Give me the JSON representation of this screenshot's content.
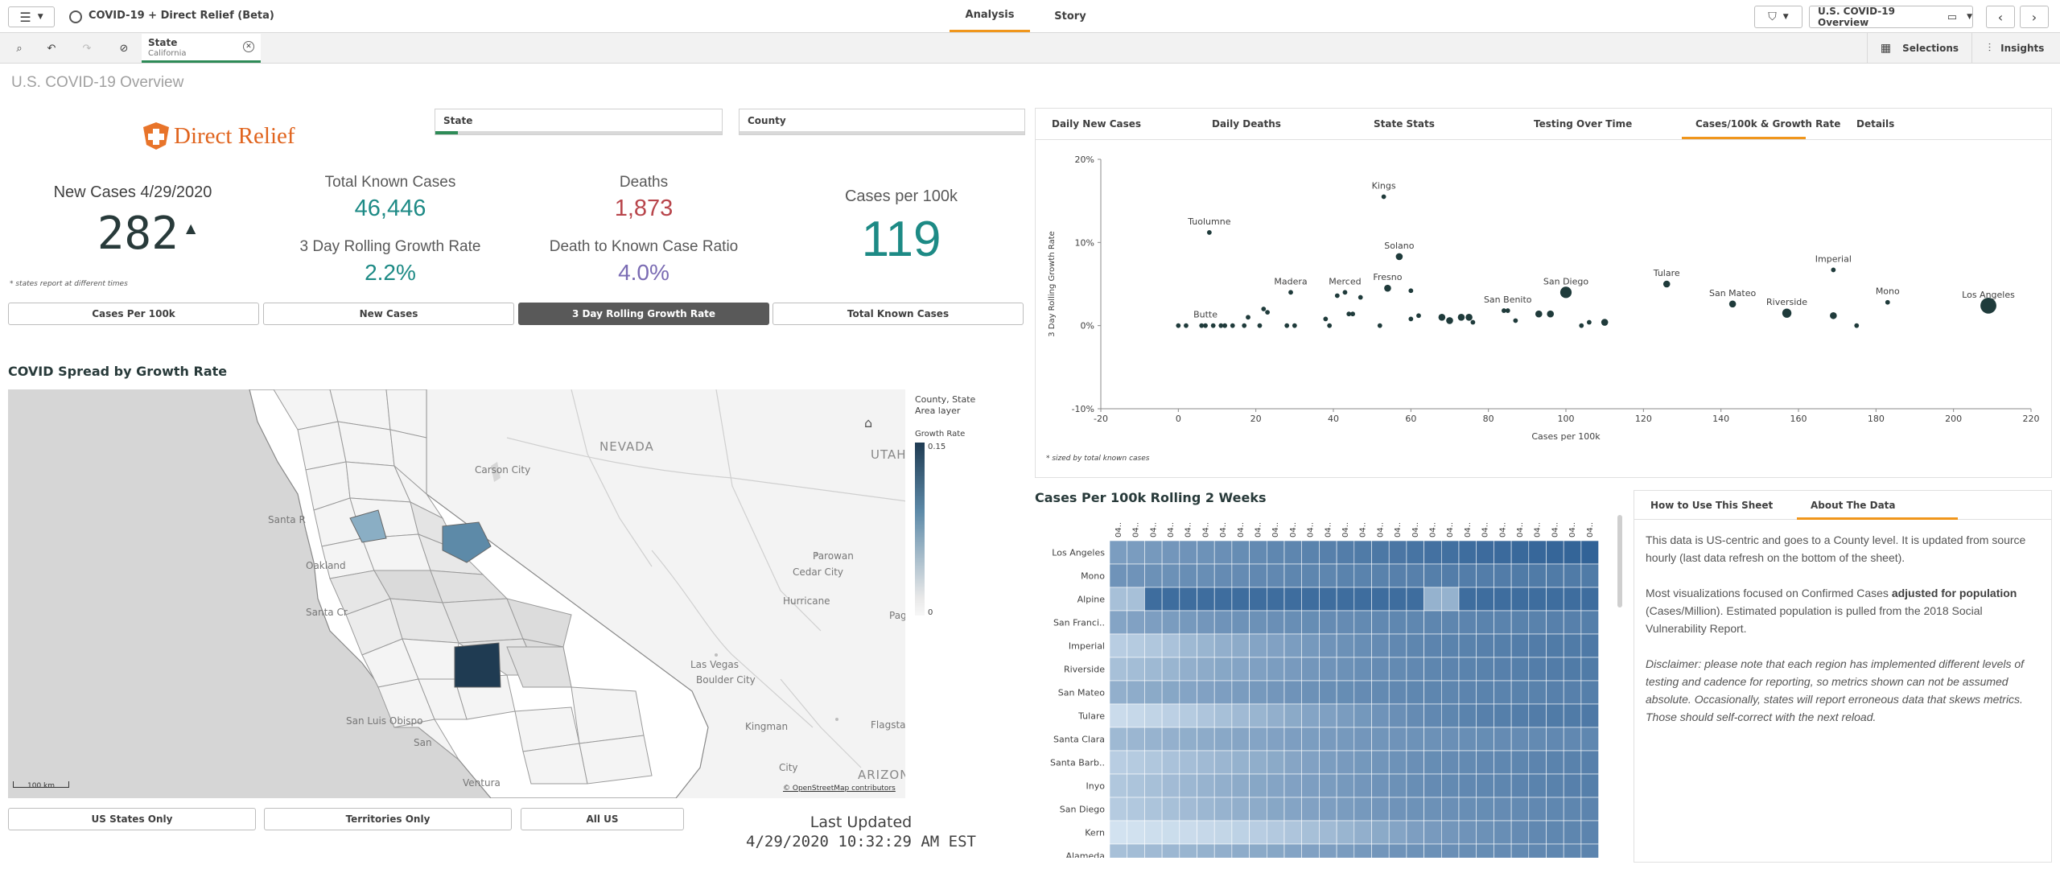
{
  "app": {
    "title": "COVID-19 + Direct Relief (Beta)",
    "tabs": [
      "Analysis",
      "Story"
    ],
    "active_tab": "Analysis",
    "sheet_selector": "U.S. COVID-19 Overview",
    "selections_label": "Selections",
    "insights_label": "Insights"
  },
  "selection": {
    "field": "State",
    "value": "California"
  },
  "page_title": "U.S. COVID-19 Overview",
  "logo_text": "Direct Relief",
  "filters": {
    "state_label": "State",
    "county_label": "County"
  },
  "kpis": {
    "new_cases_label": "New Cases 4/29/2020",
    "new_cases_value": "282",
    "new_cases_arrow": "▲",
    "total_known_label": "Total Known Cases",
    "total_known_value": "46,446",
    "growth_label": "3 Day Rolling Growth Rate",
    "growth_value": "2.2%",
    "deaths_label": "Deaths",
    "deaths_value": "1,873",
    "death_ratio_label": "Death to Known Case Ratio",
    "death_ratio_value": "4.0%",
    "cases_per_100k_label": "Cases per 100k",
    "cases_per_100k_value": "119",
    "footnote": "* states report at different times"
  },
  "metric_buttons": [
    "Cases Per 100k",
    "New Cases",
    "3 Day Rolling Growth Rate",
    "Total Known Cases"
  ],
  "metric_active": "3 Day Rolling Growth Rate",
  "map": {
    "title": "COVID Spread by Growth Rate",
    "legend_title_1": "County, State",
    "legend_title_2": "Area layer",
    "legend_measure": "Growth Rate",
    "legend_max": "0.15",
    "legend_min": "0",
    "labels": [
      "NEVADA",
      "UTAH",
      "Carson City",
      "Santa R",
      "Oakland",
      "Santa Cr",
      "San Luis Obispo",
      "San",
      "Ventura",
      "Parowan",
      "Cedar City",
      "Hurricane",
      "Pag",
      "Las Vegas",
      "Boulder City",
      "Kingman",
      "Flagsta",
      "City",
      "ARIZON"
    ],
    "scale_label": "100 km",
    "attribution": "© OpenStreetMap contributors",
    "colors": {
      "land": "#f4f4f4",
      "county_border": "#999999",
      "ocean": "#d6d6d6",
      "high": "#1f3b52",
      "mid": "#5d8aa8",
      "low": "#e3e3e3"
    }
  },
  "region_buttons": [
    "US States Only",
    "Territories Only",
    "All US"
  ],
  "last_updated": {
    "label": "Last Updated",
    "value": "4/29/2020 10:32:29 AM EST"
  },
  "chart_tabs": [
    "Daily New Cases",
    "Daily Deaths",
    "State Stats",
    "Testing Over Time",
    "Cases/100k & Growth Rate",
    "Details"
  ],
  "chart_tab_active": "Cases/100k & Growth Rate",
  "chart_data": [
    {
      "type": "scatter",
      "title": "",
      "xlabel": "Cases per 100k",
      "ylabel": "3 Day Rolling Growth Rate",
      "xlim": [
        -20,
        220
      ],
      "ylim": [
        -0.1,
        0.2
      ],
      "xticks": [
        "-20",
        "0",
        "20",
        "40",
        "60",
        "80",
        "100",
        "120",
        "140",
        "160",
        "180",
        "200",
        "220"
      ],
      "yticks": [
        "20%",
        "10%",
        "0%",
        "-10%"
      ],
      "footnote": "* sized by total known cases",
      "color": "#1f3b3b",
      "points": [
        {
          "label": "Tuolumne",
          "x": 8,
          "y": 0.112,
          "size": 1
        },
        {
          "label": "Kings",
          "x": 53,
          "y": 0.155,
          "size": 1
        },
        {
          "label": "Solano",
          "x": 57,
          "y": 0.083,
          "size": 2
        },
        {
          "label": "Madera",
          "x": 29,
          "y": 0.04,
          "size": 1
        },
        {
          "label": "Merced",
          "x": 43,
          "y": 0.04,
          "size": 1
        },
        {
          "label": "Fresno",
          "x": 54,
          "y": 0.045,
          "size": 2
        },
        {
          "label": "Butte",
          "x": 7,
          "y": 0.0,
          "size": 1
        },
        {
          "label": "San Benito",
          "x": 85,
          "y": 0.018,
          "size": 1
        },
        {
          "label": "San Diego",
          "x": 100,
          "y": 0.04,
          "size": 4
        },
        {
          "label": "Tulare",
          "x": 126,
          "y": 0.05,
          "size": 2
        },
        {
          "label": "San Mateo",
          "x": 143,
          "y": 0.026,
          "size": 2
        },
        {
          "label": "Riverside",
          "x": 157,
          "y": 0.015,
          "size": 3
        },
        {
          "label": "Imperial",
          "x": 169,
          "y": 0.067,
          "size": 1
        },
        {
          "label": "Mono",
          "x": 183,
          "y": 0.028,
          "size": 1
        },
        {
          "label": "Los Angeles",
          "x": 209,
          "y": 0.024,
          "size": 6
        },
        {
          "label": "",
          "x": 0,
          "y": 0.0,
          "size": 1
        },
        {
          "label": "",
          "x": 2,
          "y": 0.0,
          "size": 1
        },
        {
          "label": "",
          "x": 6,
          "y": 0.0,
          "size": 1
        },
        {
          "label": "",
          "x": 9,
          "y": 0.0,
          "size": 1
        },
        {
          "label": "",
          "x": 11,
          "y": 0.0,
          "size": 1
        },
        {
          "label": "",
          "x": 12,
          "y": 0.0,
          "size": 1
        },
        {
          "label": "",
          "x": 14,
          "y": 0.0,
          "size": 1
        },
        {
          "label": "",
          "x": 17,
          "y": 0.0,
          "size": 1
        },
        {
          "label": "",
          "x": 18,
          "y": 0.01,
          "size": 1
        },
        {
          "label": "",
          "x": 21,
          "y": 0.0,
          "size": 1
        },
        {
          "label": "",
          "x": 22,
          "y": 0.02,
          "size": 1
        },
        {
          "label": "",
          "x": 23,
          "y": 0.016,
          "size": 1
        },
        {
          "label": "",
          "x": 28,
          "y": 0.0,
          "size": 1
        },
        {
          "label": "",
          "x": 30,
          "y": 0.0,
          "size": 1
        },
        {
          "label": "",
          "x": 38,
          "y": 0.008,
          "size": 1
        },
        {
          "label": "",
          "x": 39,
          "y": 0.0,
          "size": 1
        },
        {
          "label": "",
          "x": 41,
          "y": 0.036,
          "size": 1
        },
        {
          "label": "",
          "x": 44,
          "y": 0.014,
          "size": 1
        },
        {
          "label": "",
          "x": 45,
          "y": 0.014,
          "size": 1
        },
        {
          "label": "",
          "x": 47,
          "y": 0.034,
          "size": 1
        },
        {
          "label": "",
          "x": 52,
          "y": 0.0,
          "size": 1
        },
        {
          "label": "",
          "x": 60,
          "y": 0.042,
          "size": 1
        },
        {
          "label": "",
          "x": 60,
          "y": 0.008,
          "size": 1
        },
        {
          "label": "",
          "x": 62,
          "y": 0.012,
          "size": 1
        },
        {
          "label": "",
          "x": 68,
          "y": 0.01,
          "size": 2
        },
        {
          "label": "",
          "x": 70,
          "y": 0.006,
          "size": 2
        },
        {
          "label": "",
          "x": 73,
          "y": 0.01,
          "size": 2
        },
        {
          "label": "",
          "x": 75,
          "y": 0.01,
          "size": 2
        },
        {
          "label": "",
          "x": 76,
          "y": 0.004,
          "size": 1
        },
        {
          "label": "",
          "x": 84,
          "y": 0.018,
          "size": 1
        },
        {
          "label": "",
          "x": 87,
          "y": 0.006,
          "size": 1
        },
        {
          "label": "",
          "x": 93,
          "y": 0.014,
          "size": 2
        },
        {
          "label": "",
          "x": 96,
          "y": 0.014,
          "size": 2
        },
        {
          "label": "",
          "x": 104,
          "y": 0.0,
          "size": 1
        },
        {
          "label": "",
          "x": 106,
          "y": 0.004,
          "size": 1
        },
        {
          "label": "",
          "x": 110,
          "y": 0.004,
          "size": 2
        },
        {
          "label": "",
          "x": 169,
          "y": 0.012,
          "size": 2
        },
        {
          "label": "",
          "x": 175,
          "y": 0.0,
          "size": 1
        }
      ]
    },
    {
      "type": "heatmap",
      "title": "Cases Per 100k Rolling 2 Weeks",
      "rows": [
        "Los Angeles",
        "Mono",
        "Alpine",
        "San Franci..",
        "Imperial",
        "Riverside",
        "San Mateo",
        "Tulare",
        "Santa Clara",
        "Santa Barb..",
        "Inyo",
        "San Diego",
        "Kern",
        "Alameda"
      ],
      "columns": [
        "04..",
        "04..",
        "04..",
        "04..",
        "04..",
        "04..",
        "04..",
        "04..",
        "04..",
        "04..",
        "04..",
        "04..",
        "04..",
        "04..",
        "04..",
        "04..",
        "04..",
        "04..",
        "04..",
        "04..",
        "04..",
        "04..",
        "04..",
        "04..",
        "04..",
        "04..",
        "04..",
        "04.."
      ],
      "color_low": "#dbe9f5",
      "color_high": "#2d5f94",
      "values": [
        [
          0.55,
          0.56,
          0.58,
          0.6,
          0.62,
          0.63,
          0.65,
          0.67,
          0.69,
          0.71,
          0.72,
          0.74,
          0.76,
          0.78,
          0.8,
          0.82,
          0.83,
          0.85,
          0.87,
          0.88,
          0.9,
          0.91,
          0.92,
          0.93,
          0.94,
          0.95,
          0.96,
          0.97
        ],
        [
          0.62,
          0.62,
          0.64,
          0.64,
          0.66,
          0.66,
          0.68,
          0.68,
          0.7,
          0.7,
          0.72,
          0.72,
          0.72,
          0.74,
          0.74,
          0.75,
          0.76,
          0.76,
          0.77,
          0.78,
          0.78,
          0.78,
          0.79,
          0.8,
          0.8,
          0.8,
          0.8,
          0.8
        ],
        [
          0.3,
          0.3,
          0.9,
          0.9,
          0.9,
          0.9,
          0.9,
          0.9,
          0.9,
          0.9,
          0.9,
          0.9,
          0.9,
          0.9,
          0.9,
          0.9,
          0.9,
          0.9,
          0.4,
          0.4,
          0.9,
          0.9,
          0.9,
          0.9,
          0.9,
          0.9,
          0.9,
          0.9
        ],
        [
          0.5,
          0.52,
          0.54,
          0.56,
          0.58,
          0.6,
          0.62,
          0.63,
          0.64,
          0.65,
          0.66,
          0.67,
          0.68,
          0.68,
          0.69,
          0.7,
          0.71,
          0.71,
          0.72,
          0.72,
          0.73,
          0.74,
          0.74,
          0.75,
          0.75,
          0.76,
          0.76,
          0.77
        ],
        [
          0.2,
          0.22,
          0.25,
          0.28,
          0.35,
          0.38,
          0.42,
          0.45,
          0.5,
          0.52,
          0.55,
          0.58,
          0.62,
          0.64,
          0.66,
          0.68,
          0.7,
          0.72,
          0.73,
          0.74,
          0.75,
          0.76,
          0.77,
          0.78,
          0.79,
          0.8,
          0.8,
          0.81
        ],
        [
          0.3,
          0.32,
          0.35,
          0.38,
          0.42,
          0.45,
          0.48,
          0.5,
          0.53,
          0.55,
          0.57,
          0.6,
          0.62,
          0.64,
          0.66,
          0.68,
          0.69,
          0.7,
          0.72,
          0.73,
          0.74,
          0.75,
          0.76,
          0.77,
          0.78,
          0.79,
          0.8,
          0.8
        ],
        [
          0.42,
          0.44,
          0.46,
          0.48,
          0.5,
          0.52,
          0.54,
          0.56,
          0.58,
          0.6,
          0.62,
          0.64,
          0.66,
          0.67,
          0.68,
          0.69,
          0.7,
          0.71,
          0.72,
          0.72,
          0.73,
          0.74,
          0.74,
          0.75,
          0.75,
          0.76,
          0.76,
          0.77
        ],
        [
          0.1,
          0.12,
          0.15,
          0.18,
          0.22,
          0.26,
          0.3,
          0.34,
          0.38,
          0.42,
          0.46,
          0.5,
          0.53,
          0.56,
          0.59,
          0.62,
          0.65,
          0.68,
          0.7,
          0.72,
          0.74,
          0.76,
          0.77,
          0.78,
          0.79,
          0.8,
          0.8,
          0.81
        ],
        [
          0.35,
          0.37,
          0.39,
          0.41,
          0.43,
          0.45,
          0.47,
          0.49,
          0.5,
          0.52,
          0.54,
          0.55,
          0.57,
          0.58,
          0.6,
          0.61,
          0.62,
          0.63,
          0.64,
          0.65,
          0.66,
          0.67,
          0.68,
          0.68,
          0.69,
          0.7,
          0.7,
          0.71
        ],
        [
          0.2,
          0.22,
          0.25,
          0.28,
          0.31,
          0.34,
          0.37,
          0.4,
          0.43,
          0.46,
          0.49,
          0.52,
          0.55,
          0.57,
          0.59,
          0.61,
          0.63,
          0.65,
          0.67,
          0.68,
          0.69,
          0.7,
          0.71,
          0.72,
          0.73,
          0.74,
          0.75,
          0.76
        ],
        [
          0.25,
          0.27,
          0.3,
          0.33,
          0.36,
          0.39,
          0.42,
          0.45,
          0.48,
          0.5,
          0.52,
          0.54,
          0.56,
          0.58,
          0.6,
          0.62,
          0.64,
          0.66,
          0.68,
          0.69,
          0.7,
          0.71,
          0.72,
          0.73,
          0.74,
          0.75,
          0.76,
          0.77
        ],
        [
          0.22,
          0.24,
          0.27,
          0.3,
          0.33,
          0.36,
          0.39,
          0.42,
          0.45,
          0.48,
          0.5,
          0.52,
          0.54,
          0.56,
          0.58,
          0.6,
          0.62,
          0.63,
          0.64,
          0.65,
          0.66,
          0.67,
          0.68,
          0.69,
          0.7,
          0.71,
          0.72,
          0.73
        ],
        [
          0.05,
          0.06,
          0.08,
          0.09,
          0.1,
          0.12,
          0.14,
          0.17,
          0.2,
          0.23,
          0.26,
          0.3,
          0.34,
          0.38,
          0.42,
          0.46,
          0.5,
          0.54,
          0.57,
          0.6,
          0.62,
          0.64,
          0.66,
          0.68,
          0.7,
          0.71,
          0.72,
          0.73
        ],
        [
          0.3,
          0.32,
          0.34,
          0.36,
          0.38,
          0.4,
          0.42,
          0.44,
          0.46,
          0.48,
          0.5,
          0.52,
          0.54,
          0.56,
          0.58,
          0.6,
          0.62,
          0.63,
          0.64,
          0.65,
          0.66,
          0.67,
          0.68,
          0.69,
          0.7,
          0.71,
          0.72,
          0.73
        ]
      ]
    }
  ],
  "info": {
    "tabs": [
      "How to Use This Sheet",
      "About The Data"
    ],
    "active_tab": "About The Data",
    "p1": "This data is US-centric and goes to a County level. It is updated from source hourly (last data refresh on the bottom of the sheet).",
    "p2_pre": "Most visualizations focused on Confirmed Cases ",
    "p2_bold": "adjusted for population",
    "p2_post": " (Cases/Million). Estimated population is pulled from the 2018 Social Vulnerability Report.",
    "p3": "Disclaimer: please note that each region has implemented different levels of testing and cadence for reporting, so metrics shown can not be assumed absolute. Occasionally, states will report erroneous data that skews metrics. Those should self-correct with the next reload."
  },
  "colors": {
    "accent": "#f0961c",
    "teal": "#1d8a85",
    "red": "#b8454b",
    "purple": "#7a6bb3",
    "dark": "#283a3a"
  }
}
